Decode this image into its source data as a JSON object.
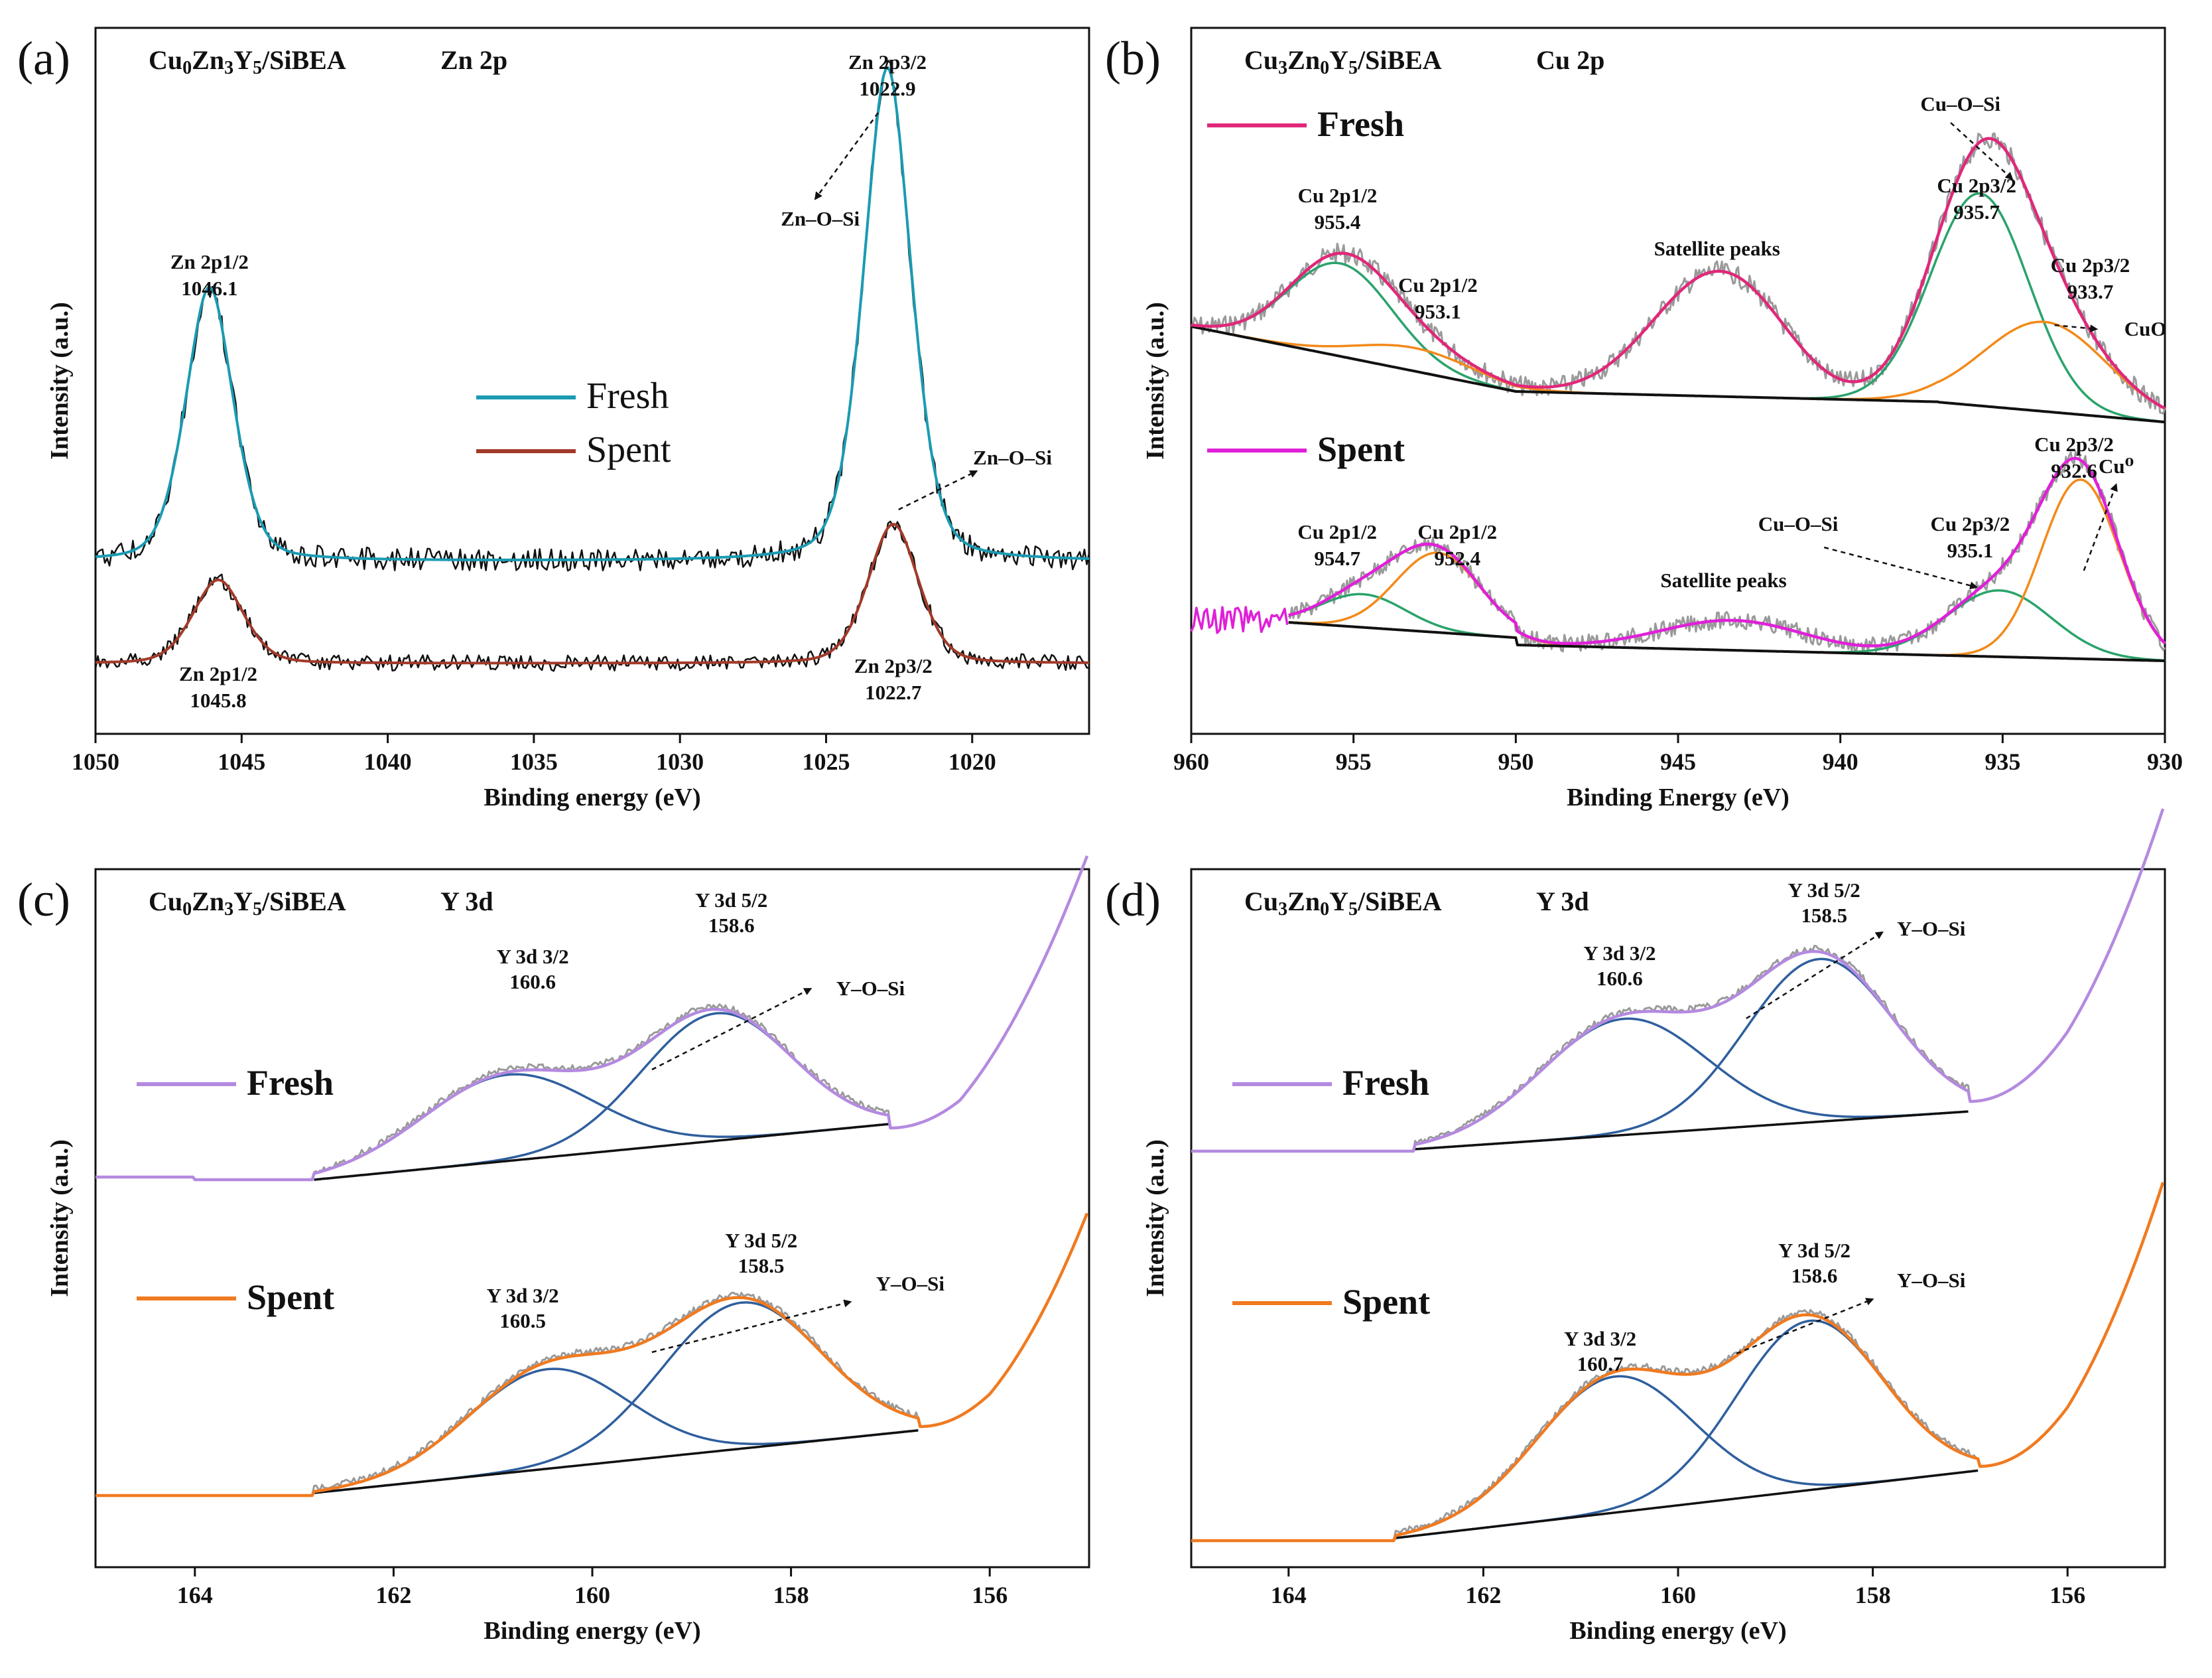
{
  "chart_data": [
    {
      "panel": "(a)",
      "type": "line",
      "title": "Cu0Zn3Y5/SiBEA    Zn 2p",
      "sample": "Cu0Zn3Y5/SiBEA",
      "region": "Zn 2p",
      "xlabel": "Binding energy (eV)",
      "ylabel": "Intensity (a.u.)",
      "xlim": [
        1050,
        1016
      ],
      "xticks": [
        1050,
        1045,
        1040,
        1035,
        1030,
        1025,
        1020
      ],
      "legend": [
        {
          "name": "Fresh",
          "color": "#1a9bb3"
        },
        {
          "name": "Spent",
          "color": "#a23a2a"
        }
      ],
      "series": [
        {
          "name": "Fresh",
          "baseline": 0.62,
          "peaks": [
            {
              "center": 1046.1,
              "height": 0.86,
              "width": 0.85
            },
            {
              "center": 1022.9,
              "height": 1.55,
              "width": 0.85
            }
          ]
        },
        {
          "name": "Spent",
          "baseline": 0.2,
          "peaks": [
            {
              "center": 1045.8,
              "height": 0.3,
              "width": 0.9
            },
            {
              "center": 1022.7,
              "height": 0.5,
              "width": 0.9
            }
          ]
        }
      ],
      "annotations": [
        {
          "lines": [
            "Zn 2p3/2",
            "1022.9"
          ],
          "pointer": "Zn–O–Si"
        },
        {
          "lines": [
            "Zn 2p1/2",
            "1046.1"
          ]
        },
        {
          "lines": [
            "Zn–O–Si"
          ]
        },
        {
          "lines": [
            "Zn 2p1/2",
            "1045.8"
          ]
        },
        {
          "lines": [
            "Zn 2p3/2",
            "1022.7"
          ]
        }
      ]
    },
    {
      "panel": "(b)",
      "type": "line",
      "title": "Cu3Zn0Y5/SiBEA    Cu 2p",
      "sample": "Cu3Zn0Y5/SiBEA",
      "region": "Cu 2p",
      "xlabel": "Binding Energy (eV)",
      "ylabel": "Intensity (a.u.)",
      "xlim": [
        960,
        930
      ],
      "xticks": [
        960,
        955,
        950,
        945,
        940,
        935,
        930
      ],
      "legend": [
        {
          "name": "Fresh",
          "color": "#e0287a"
        },
        {
          "name": "Spent",
          "color": "#e020d8"
        }
      ],
      "fit_components": [
        {
          "name": "Fresh Cu 2p1/2",
          "center": 955.4
        },
        {
          "name": "Fresh Cu 2p1/2",
          "center": 953.1
        },
        {
          "name": "Fresh Cu 2p3/2 (Cu–O–Si)",
          "center": 935.7
        },
        {
          "name": "Fresh Cu 2p3/2 (CuO)",
          "center": 933.7
        },
        {
          "name": "Spent Cu 2p1/2",
          "center": 954.7
        },
        {
          "name": "Spent Cu 2p1/2",
          "center": 952.4
        },
        {
          "name": "Spent Cu 2p3/2 (Cu–O–Si)",
          "center": 935.1
        },
        {
          "name": "Spent Cu 2p3/2 (Cu0)",
          "center": 932.6
        }
      ],
      "annotations": [
        {
          "lines": [
            "Cu–O–Si"
          ]
        },
        {
          "lines": [
            "Cu 2p1/2",
            "955.4"
          ]
        },
        {
          "lines": [
            "Cu 2p1/2",
            "953.1"
          ]
        },
        {
          "lines": [
            "Satellite peaks"
          ]
        },
        {
          "lines": [
            "Cu 2p3/2",
            "935.7"
          ]
        },
        {
          "lines": [
            "Cu 2p3/2",
            "933.7"
          ]
        },
        {
          "lines": [
            "CuO"
          ]
        },
        {
          "lines": [
            "Cu 2p3/2",
            "932.6"
          ]
        },
        {
          "lines": [
            "Cu⁰"
          ]
        },
        {
          "lines": [
            "Cu–O–Si"
          ]
        },
        {
          "lines": [
            "Cu 2p3/2",
            "935.1"
          ]
        },
        {
          "lines": [
            "Cu 2p1/2",
            "954.7"
          ]
        },
        {
          "lines": [
            "Cu 2p1/2",
            "952.4"
          ]
        },
        {
          "lines": [
            "Satellite peaks"
          ]
        }
      ]
    },
    {
      "panel": "(c)",
      "type": "line",
      "title": "Cu0Zn3Y5/SiBEA    Y 3d",
      "sample": "Cu0Zn3Y5/SiBEA",
      "region": "Y 3d",
      "xlabel": "Binding energy (eV)",
      "ylabel": "Intensity (a.u.)",
      "xlim": [
        165,
        155
      ],
      "xticks": [
        164,
        162,
        160,
        158,
        156
      ],
      "legend": [
        {
          "name": "Fresh",
          "color": "#b48ae0"
        },
        {
          "name": "Spent",
          "color": "#f07a20"
        }
      ],
      "fit_components": [
        {
          "name": "Fresh Y 3d 3/2",
          "center": 160.6
        },
        {
          "name": "Fresh Y 3d 5/2",
          "center": 158.6
        },
        {
          "name": "Spent Y 3d 3/2",
          "center": 160.5
        },
        {
          "name": "Spent Y 3d 5/2",
          "center": 158.5
        }
      ],
      "annotations": [
        {
          "lines": [
            "Y 3d 5/2",
            "158.6"
          ]
        },
        {
          "lines": [
            "Y–O–Si"
          ]
        },
        {
          "lines": [
            "Y 3d 3/2",
            "160.6"
          ]
        },
        {
          "lines": [
            "Y 3d 5/2",
            "158.5"
          ]
        },
        {
          "lines": [
            "Y–O–Si"
          ]
        },
        {
          "lines": [
            "Y 3d 3/2",
            "160.5"
          ]
        }
      ]
    },
    {
      "panel": "(d)",
      "type": "line",
      "title": "Cu3Zn0Y5/SiBEA    Y 3d",
      "sample": "Cu3Zn0Y5/SiBEA",
      "region": "Y 3d",
      "xlabel": "Binding energy (eV)",
      "ylabel": "Intensity (a.u.)",
      "xlim": [
        165,
        155
      ],
      "xticks": [
        164,
        162,
        160,
        158,
        156
      ],
      "legend": [
        {
          "name": "Fresh",
          "color": "#b48ae0"
        },
        {
          "name": "Spent",
          "color": "#f07a20"
        }
      ],
      "fit_components": [
        {
          "name": "Fresh Y 3d 3/2",
          "center": 160.6
        },
        {
          "name": "Fresh Y 3d 5/2",
          "center": 158.5
        },
        {
          "name": "Spent Y 3d 3/2",
          "center": 160.7
        },
        {
          "name": "Spent Y 3d 5/2",
          "center": 158.6
        }
      ],
      "annotations": [
        {
          "lines": [
            "Y 3d 5/2",
            "158.5"
          ]
        },
        {
          "lines": [
            "Y–O–Si"
          ]
        },
        {
          "lines": [
            "Y 3d 3/2",
            "160.6"
          ]
        },
        {
          "lines": [
            "Y 3d 5/2",
            "158.6"
          ]
        },
        {
          "lines": [
            "Y–O–Si"
          ]
        },
        {
          "lines": [
            "Y 3d 3/2",
            "160.7"
          ]
        }
      ]
    }
  ]
}
